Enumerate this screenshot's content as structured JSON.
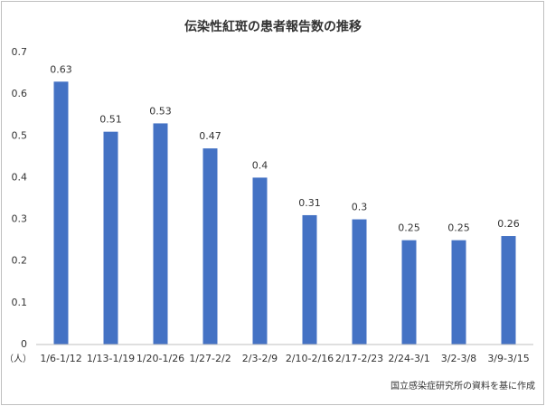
{
  "chart_data": {
    "type": "bar",
    "title": "伝染性紅斑の患者報告数の推移",
    "categories": [
      "1/6-1/12",
      "1/13-1/19",
      "1/20-1/26",
      "1/27-2/2",
      "2/3-2/9",
      "2/10-2/16",
      "2/17-2/23",
      "2/24-3/1",
      "3/2-3/8",
      "3/9-3/15"
    ],
    "values": [
      0.63,
      0.51,
      0.53,
      0.47,
      0.4,
      0.31,
      0.3,
      0.25,
      0.25,
      0.26
    ],
    "color": "#4472c4",
    "ylim": [
      0,
      0.7
    ],
    "yticks": [
      0,
      0.1,
      0.2,
      0.3,
      0.4,
      0.5,
      0.6,
      0.7
    ],
    "grid": false,
    "y_unit_label": "（人）",
    "source": "国立感染症研究所の資料を基に作成"
  }
}
